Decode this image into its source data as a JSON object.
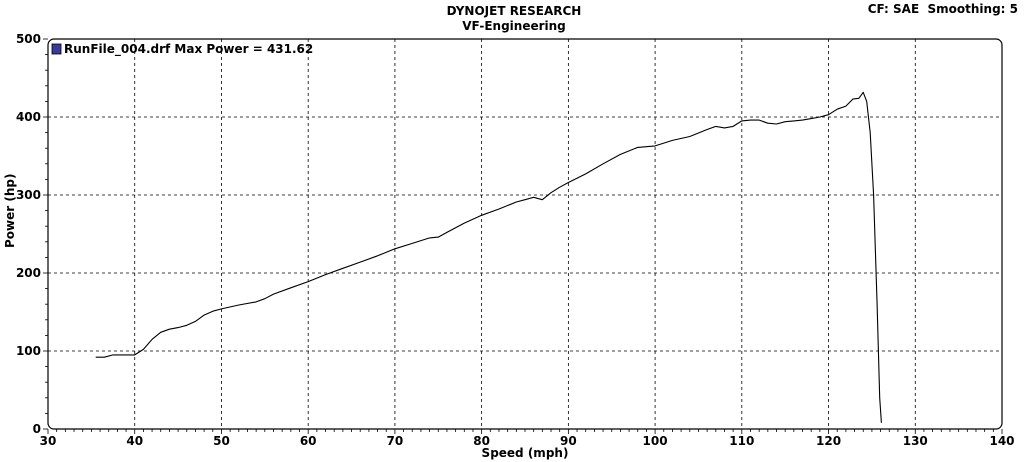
{
  "header": {
    "title_line1": "DYNOJET RESEARCH",
    "title_line2": "VF-Engineering",
    "corner_info": "CF: SAE  Smoothing: 5"
  },
  "chart_data": {
    "type": "line",
    "xlabel": "Speed (mph)",
    "ylabel": "Power (hp)",
    "xlim": [
      30,
      140
    ],
    "ylim": [
      0,
      500
    ],
    "xticks": [
      30,
      40,
      50,
      60,
      70,
      80,
      90,
      100,
      110,
      120,
      130,
      140
    ],
    "yticks": [
      0,
      100,
      200,
      300,
      400,
      500
    ],
    "grid": true,
    "legend_position": "top-left",
    "series": [
      {
        "name": "RunFile_004.drf Max Power = 431.62",
        "color": "#000000",
        "x": [
          35.5,
          36.5,
          37.5,
          39,
          40,
          41,
          42,
          43,
          44,
          45,
          46,
          47,
          48,
          49,
          50,
          52,
          54,
          55,
          56,
          58,
          60,
          62,
          64,
          66,
          68,
          70,
          72,
          74,
          75,
          76,
          78,
          80,
          82,
          84,
          85,
          86,
          87,
          88,
          89,
          90,
          92,
          94,
          96,
          98,
          100,
          102,
          104,
          106,
          107,
          108,
          109,
          110,
          111,
          112,
          113,
          114,
          115,
          116,
          117,
          118,
          119,
          120,
          121,
          122,
          122.8,
          123.5,
          124,
          124.4,
          124.8,
          125.2,
          125.6,
          125.9,
          126.1
        ],
        "y": [
          92,
          92,
          95,
          95,
          95,
          102,
          115,
          124,
          128,
          130,
          133,
          138,
          146,
          151,
          154,
          159,
          163,
          167,
          173,
          181,
          189,
          198,
          206,
          214,
          222,
          231,
          238,
          245,
          246,
          252,
          264,
          274,
          282,
          291,
          294,
          297,
          294,
          303,
          310,
          316,
          327,
          340,
          352,
          361,
          363,
          370,
          375,
          384,
          388,
          386,
          388,
          395,
          396,
          396,
          392,
          391,
          394,
          395,
          396,
          398,
          400,
          403,
          410,
          414,
          423,
          424,
          431.62,
          420,
          380,
          300,
          160,
          40,
          8
        ]
      }
    ]
  }
}
